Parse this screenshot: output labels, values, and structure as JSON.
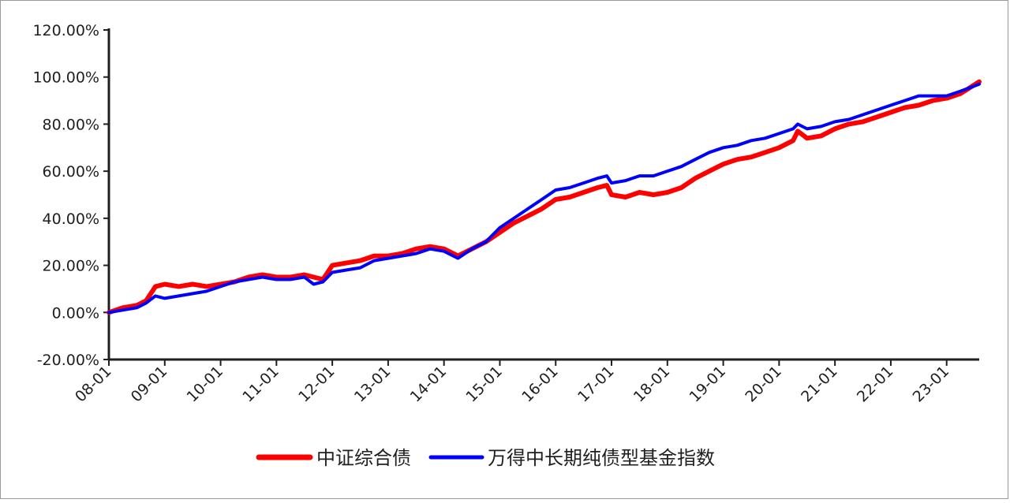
{
  "chart_data": {
    "type": "line",
    "title": "",
    "xlabel": "",
    "ylabel": "",
    "x_tick_labels": [
      "08-01",
      "09-01",
      "10-01",
      "11-01",
      "12-01",
      "13-01",
      "14-01",
      "15-01",
      "16-01",
      "17-01",
      "18-01",
      "19-01",
      "20-01",
      "21-01",
      "22-01",
      "23-01"
    ],
    "y_tick_labels": [
      "120.00%",
      "100.00%",
      "80.00%",
      "60.00%",
      "40.00%",
      "20.00%",
      "0.00%",
      "-20.00%"
    ],
    "y_ticks": [
      120,
      100,
      80,
      60,
      40,
      20,
      0,
      -20
    ],
    "ylim": [
      -20,
      120
    ],
    "xlim": [
      "2008-01",
      "2023-08"
    ],
    "y_unit": "%",
    "grid": false,
    "legend_position": "bottom",
    "x": [
      "2008-01",
      "2008-04",
      "2008-07",
      "2008-09",
      "2008-11",
      "2009-01",
      "2009-04",
      "2009-07",
      "2009-10",
      "2010-01",
      "2010-04",
      "2010-07",
      "2010-10",
      "2011-01",
      "2011-04",
      "2011-07",
      "2011-09",
      "2011-11",
      "2012-01",
      "2012-04",
      "2012-07",
      "2012-10",
      "2013-01",
      "2013-04",
      "2013-07",
      "2013-10",
      "2014-01",
      "2014-04",
      "2014-07",
      "2014-10",
      "2015-01",
      "2015-04",
      "2015-07",
      "2015-10",
      "2016-01",
      "2016-04",
      "2016-07",
      "2016-10",
      "2016-12",
      "2017-01",
      "2017-04",
      "2017-07",
      "2017-10",
      "2018-01",
      "2018-04",
      "2018-07",
      "2018-10",
      "2019-01",
      "2019-04",
      "2019-07",
      "2019-10",
      "2020-01",
      "2020-04",
      "2020-05",
      "2020-07",
      "2020-10",
      "2021-01",
      "2021-04",
      "2021-07",
      "2021-10",
      "2022-01",
      "2022-04",
      "2022-07",
      "2022-10",
      "2023-01",
      "2023-04",
      "2023-08"
    ],
    "series": [
      {
        "name": "中证综合债",
        "color": "#ff0000",
        "values": [
          0,
          2,
          3,
          5,
          11,
          12,
          11,
          12,
          11,
          12,
          13,
          15,
          16,
          15,
          15,
          16,
          15,
          14,
          20,
          21,
          22,
          24,
          24,
          25,
          27,
          28,
          27,
          24,
          27,
          30,
          34,
          38,
          41,
          44,
          48,
          49,
          51,
          53,
          54,
          50,
          49,
          51,
          50,
          51,
          53,
          57,
          60,
          63,
          65,
          66,
          68,
          70,
          73,
          77,
          74,
          75,
          78,
          80,
          81,
          83,
          85,
          87,
          88,
          90,
          91,
          93,
          98
        ]
      },
      {
        "name": "万得中长期纯债型基金指数",
        "color": "#0000ff",
        "values": [
          0,
          1,
          2,
          4,
          7,
          6,
          7,
          8,
          9,
          11,
          13,
          14,
          15,
          14,
          14,
          15,
          12,
          13,
          17,
          18,
          19,
          22,
          23,
          24,
          25,
          27,
          26,
          23,
          27,
          30,
          36,
          40,
          44,
          48,
          52,
          53,
          55,
          57,
          58,
          55,
          56,
          58,
          58,
          60,
          62,
          65,
          68,
          70,
          71,
          73,
          74,
          76,
          78,
          80,
          78,
          79,
          81,
          82,
          84,
          86,
          88,
          90,
          92,
          92,
          92,
          94,
          97
        ]
      }
    ]
  },
  "legend": [
    {
      "label": "中证综合债",
      "color": "#ff0000"
    },
    {
      "label": "万得中长期纯债型基金指数",
      "color": "#0000ff"
    }
  ]
}
